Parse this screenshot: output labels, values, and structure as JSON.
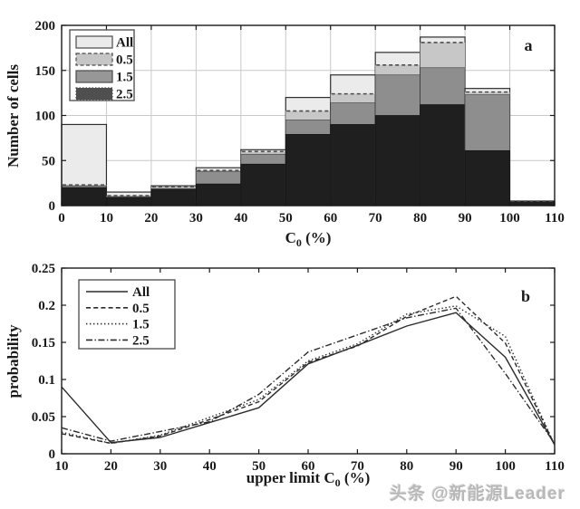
{
  "watermark": {
    "text": "头条 @新能源Leader"
  },
  "panel_a": {
    "label": "a",
    "ylabel": "Number of cells",
    "xlabel": {
      "pre": "C",
      "sub": "0",
      "post": " (%)"
    }
  },
  "panel_b": {
    "label": "b",
    "ylabel": "probability",
    "xlabel": {
      "pre": "upper limit C",
      "sub": "0",
      "post": " (%)"
    }
  },
  "colors": {
    "axis": "#1a1a1a",
    "grid": "#c9c9c9",
    "bar_outline": "#2e2e2e",
    "dashed_edge": "#4d4d4d",
    "line": "#2b2b2b",
    "legend_border": "#555555",
    "watermark_gray": "#b8b8b8"
  },
  "chart_data": [
    {
      "type": "bar",
      "subtype": "overlaid-histogram",
      "panel": "a",
      "title": "",
      "xlabel": "C_0 (%)",
      "ylabel": "Number of cells",
      "xlim": [
        0,
        110
      ],
      "ylim": [
        0,
        200
      ],
      "grid": true,
      "legend_position": "top-left",
      "xticks": [
        0,
        10,
        20,
        30,
        40,
        50,
        60,
        70,
        80,
        90,
        100,
        110
      ],
      "xticklabels": [
        "0",
        "10",
        "20",
        "30",
        "40",
        "50",
        "60",
        "70",
        "80",
        "90",
        "100",
        "110"
      ],
      "yticks": [
        0,
        50,
        100,
        150,
        200
      ],
      "yticklabels": [
        "0",
        "50",
        "100",
        "150",
        "200"
      ],
      "gridx": [
        10,
        20,
        30,
        40,
        50,
        60,
        70,
        80,
        90,
        100
      ],
      "gridy": [
        50,
        100,
        150
      ],
      "bin_edges": [
        0,
        10,
        20,
        30,
        40,
        50,
        60,
        70,
        80,
        90,
        100,
        110
      ],
      "series": [
        {
          "name": "All",
          "fill": "#ebebeb",
          "legend_fill": "#ebebeb",
          "edge": "solid",
          "values": [
            90,
            15,
            22,
            42,
            62,
            120,
            145,
            170,
            187,
            130,
            5
          ]
        },
        {
          "name": "0.5",
          "fill": "#c7c7c7",
          "legend_fill": "#c6c6c6",
          "edge": "dashed",
          "values": [
            23,
            11,
            21,
            39,
            60,
            105,
            124,
            156,
            181,
            126,
            5
          ]
        },
        {
          "name": "1.5",
          "fill": "#8e8e8e",
          "legend_fill": "#979797",
          "edge": "solid",
          "values": [
            22,
            10,
            19,
            38,
            57,
            95,
            114,
            145,
            153,
            123,
            5
          ]
        },
        {
          "name": "2.5",
          "fill": "#1f1f1f",
          "legend_fill": "#4f4f4f",
          "edge": "dotted",
          "values": [
            20,
            9,
            18,
            24,
            46,
            79,
            90,
            100,
            112,
            61,
            5
          ]
        }
      ]
    },
    {
      "type": "line",
      "panel": "b",
      "title": "",
      "xlabel": "upper limit C_0 (%)",
      "ylabel": "probability",
      "xlim": [
        10,
        110
      ],
      "ylim": [
        0,
        0.25
      ],
      "grid": false,
      "legend_position": "top-left",
      "xticks": [
        10,
        20,
        30,
        40,
        50,
        60,
        70,
        80,
        90,
        100,
        110
      ],
      "xticklabels": [
        "10",
        "20",
        "30",
        "40",
        "50",
        "60",
        "70",
        "80",
        "90",
        "100",
        "110"
      ],
      "yticks": [
        0,
        0.05,
        0.1,
        0.15,
        0.2,
        0.25
      ],
      "yticklabels": [
        "0",
        "0.05",
        "0.1",
        "0.15",
        "0.2",
        "0.25"
      ],
      "x": [
        10,
        20,
        30,
        40,
        50,
        60,
        70,
        80,
        90,
        100,
        110
      ],
      "series": [
        {
          "name": "All",
          "style": "solid",
          "values": [
            0.09,
            0.015,
            0.022,
            0.042,
            0.062,
            0.121,
            0.146,
            0.172,
            0.19,
            0.13,
            0.012
          ]
        },
        {
          "name": "0.5",
          "style": "dashed",
          "values": [
            0.027,
            0.014,
            0.024,
            0.046,
            0.07,
            0.123,
            0.145,
            0.185,
            0.212,
            0.149,
            0.012
          ]
        },
        {
          "name": "1.5",
          "style": "dotted",
          "values": [
            0.029,
            0.014,
            0.025,
            0.049,
            0.073,
            0.125,
            0.148,
            0.188,
            0.199,
            0.158,
            0.012
          ]
        },
        {
          "name": "2.5",
          "style": "dashdot",
          "values": [
            0.035,
            0.017,
            0.03,
            0.043,
            0.08,
            0.137,
            0.16,
            0.183,
            0.196,
            0.108,
            0.014
          ]
        }
      ]
    }
  ]
}
